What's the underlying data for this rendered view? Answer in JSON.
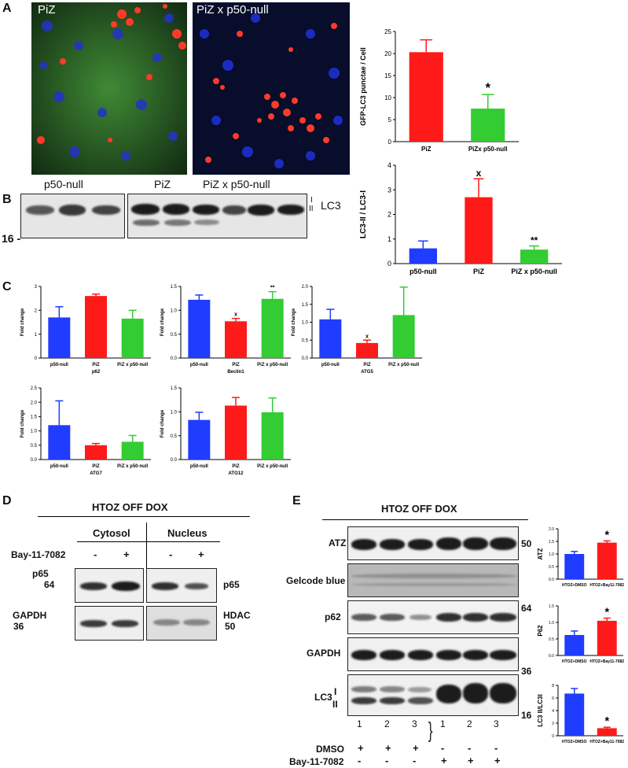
{
  "panels": {
    "A": "A",
    "B": "B",
    "C": "C",
    "D": "D",
    "E": "E"
  },
  "panelA": {
    "image_labels": [
      "PiZ",
      "PiZ x p50-null"
    ]
  },
  "panelB": {
    "lane_groups": [
      "p50-null",
      "PiZ",
      "PiZ x p50-null"
    ],
    "marker": "16 -",
    "band_label": "LC3",
    "roman": [
      "I",
      "II"
    ]
  },
  "panelD": {
    "title": "HTOZ OFF DOX",
    "columns": [
      "Cytosol",
      "Nucleus"
    ],
    "treatment": "Bay-11-7082",
    "signs": [
      "-",
      "+",
      "-",
      "+"
    ],
    "rows_left": [
      "p65",
      "GAPDH"
    ],
    "markers_left": [
      "64",
      "36"
    ],
    "rows_right": [
      "p65",
      "HDAC"
    ],
    "marker_right": "50"
  },
  "panelE": {
    "title": "HTOZ OFF DOX",
    "rows": [
      "ATZ",
      "Gelcode blue",
      "p62",
      "GAPDH",
      "LC3"
    ],
    "roman": [
      "I",
      "II"
    ],
    "markers": [
      "50",
      "64",
      "36",
      "16"
    ],
    "lane_numbers": [
      "1",
      "2",
      "3",
      "1",
      "2",
      "3"
    ],
    "treat_labels": [
      "DMSO",
      "Bay-11-7082"
    ],
    "dmso_signs": [
      "+",
      "+",
      "+",
      "-",
      "-",
      "-"
    ],
    "bay_signs": [
      "-",
      "-",
      "-",
      "+",
      "+",
      "+"
    ]
  },
  "colors": {
    "blue": "#1f3cff",
    "red": "#ff1a1a",
    "green": "#33cc33"
  },
  "chart_data": [
    {
      "id": "A",
      "type": "bar",
      "categories": [
        "PiZ",
        "PiZx p50-null"
      ],
      "values": [
        20.3,
        7.5
      ],
      "errors": [
        2.8,
        3.2
      ],
      "ylabel": "GFP-LC3 punctae / Cell",
      "ylim": [
        0,
        25
      ],
      "yticks": [
        0,
        5,
        10,
        15,
        20,
        25
      ],
      "annotations": [
        "",
        "*"
      ],
      "colors": [
        "red",
        "green"
      ]
    },
    {
      "id": "B",
      "type": "bar",
      "categories": [
        "p50-null",
        "PiZ",
        "PiZ x p50-null"
      ],
      "values": [
        0.62,
        2.7,
        0.57
      ],
      "errors": [
        0.3,
        0.75,
        0.15
      ],
      "ylabel": "LC3-II / LC3-I",
      "ylim": [
        0,
        4
      ],
      "yticks": [
        0,
        1,
        2,
        3,
        4
      ],
      "annotations": [
        "",
        "x",
        "**"
      ],
      "colors": [
        "blue",
        "red",
        "green"
      ]
    },
    {
      "id": "C1",
      "type": "bar",
      "categories": [
        "p50-null",
        "PiZ",
        "PiZ x p50-null"
      ],
      "values": [
        1.7,
        2.6,
        1.65
      ],
      "errors": [
        0.45,
        0.08,
        0.35
      ],
      "ylabel": "Fold change",
      "xlabel": "p62",
      "ylim": [
        0,
        3
      ],
      "yticks": [
        0,
        1,
        2,
        3
      ],
      "annotations": [
        "",
        "",
        ""
      ],
      "colors": [
        "blue",
        "red",
        "green"
      ]
    },
    {
      "id": "C2",
      "type": "bar",
      "categories": [
        "p50-null",
        "PiZ",
        "PiZ x p50-null"
      ],
      "values": [
        1.22,
        0.77,
        1.24
      ],
      "errors": [
        0.1,
        0.06,
        0.15
      ],
      "ylabel": "Fold change",
      "xlabel": "Beclin1",
      "ylim": [
        0,
        1.5
      ],
      "yticks": [
        0,
        0.5,
        1.0,
        1.5
      ],
      "annotations": [
        "",
        "x",
        "**"
      ],
      "colors": [
        "blue",
        "red",
        "green"
      ]
    },
    {
      "id": "C3",
      "type": "bar",
      "categories": [
        "p50-null",
        "PiZ",
        "PiZ x p50-null"
      ],
      "values": [
        1.08,
        0.42,
        1.2
      ],
      "errors": [
        0.28,
        0.08,
        0.78
      ],
      "ylabel": "Fold change",
      "xlabel": "ATG5",
      "ylim": [
        0,
        2
      ],
      "yticks": [
        0,
        0.5,
        1.0,
        1.5,
        2.0
      ],
      "annotations": [
        "",
        "x",
        ""
      ],
      "colors": [
        "blue",
        "red",
        "green"
      ]
    },
    {
      "id": "C4",
      "type": "bar",
      "categories": [
        "p50-null",
        "PiZ",
        "PiZ x p50-null"
      ],
      "values": [
        1.2,
        0.5,
        0.62
      ],
      "errors": [
        0.85,
        0.06,
        0.22
      ],
      "ylabel": "Fold change",
      "xlabel": "ATG7",
      "ylim": [
        0,
        2.5
      ],
      "yticks": [
        0,
        0.5,
        1.0,
        1.5,
        2.0,
        2.5
      ],
      "annotations": [
        "",
        "",
        ""
      ],
      "colors": [
        "blue",
        "red",
        "green"
      ]
    },
    {
      "id": "C5",
      "type": "bar",
      "categories": [
        "p50-null",
        "PiZ",
        "PiZ x p50-null"
      ],
      "values": [
        0.83,
        1.13,
        0.99
      ],
      "errors": [
        0.16,
        0.17,
        0.3
      ],
      "ylabel": "Fold change",
      "xlabel": "ATG12",
      "ylim": [
        0,
        1.5
      ],
      "yticks": [
        0,
        0.5,
        1.0,
        1.5
      ],
      "annotations": [
        "",
        "",
        ""
      ],
      "colors": [
        "blue",
        "red",
        "green"
      ]
    },
    {
      "id": "E1",
      "type": "bar",
      "categories": [
        "HTOZ+DMSO",
        "HTOZ+Bay11-7082"
      ],
      "values": [
        1.0,
        1.45
      ],
      "errors": [
        0.1,
        0.07
      ],
      "ylabel": "ATZ",
      "ylim": [
        0,
        2.0
      ],
      "yticks": [
        0,
        0.5,
        1.0,
        1.5,
        2.0
      ],
      "annotations": [
        "",
        "*"
      ],
      "colors": [
        "blue",
        "red"
      ]
    },
    {
      "id": "E2",
      "type": "bar",
      "categories": [
        "HTOZ+DMSO",
        "HTOZ+Bay11-7082"
      ],
      "values": [
        0.62,
        1.05
      ],
      "errors": [
        0.12,
        0.08
      ],
      "ylabel": "P62",
      "ylim": [
        0,
        1.5
      ],
      "yticks": [
        0,
        0.5,
        1.0,
        1.5
      ],
      "annotations": [
        "",
        "*"
      ],
      "colors": [
        "blue",
        "red"
      ]
    },
    {
      "id": "E3",
      "type": "bar",
      "categories": [
        "HTOZ+DMSO",
        "HTOZ+Bay11-7082"
      ],
      "values": [
        6.7,
        1.2
      ],
      "errors": [
        0.8,
        0.15
      ],
      "ylabel": "LC3 II/LC3I",
      "ylim": [
        0,
        8
      ],
      "yticks": [
        0,
        2,
        4,
        6,
        8
      ],
      "annotations": [
        "",
        "*"
      ],
      "colors": [
        "blue",
        "red"
      ]
    }
  ]
}
